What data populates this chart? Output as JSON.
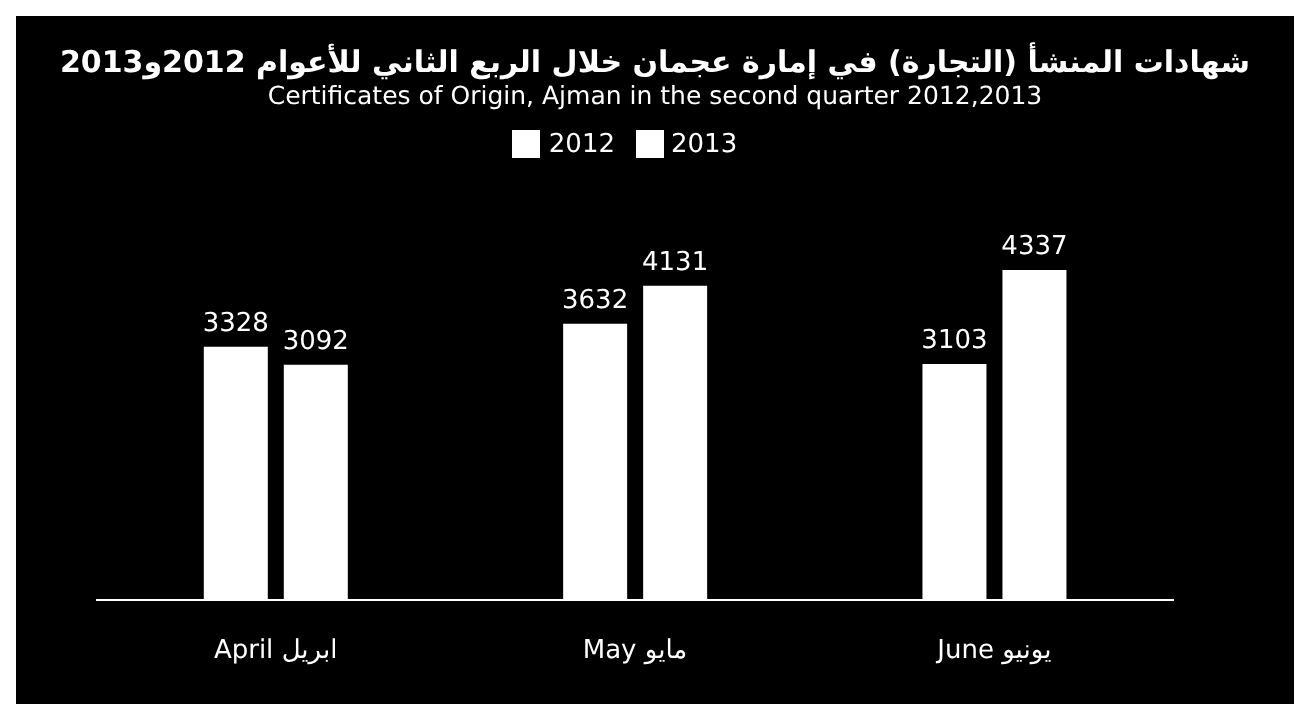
{
  "chart_data": {
    "type": "bar",
    "title": "شهادات المنشأ (التجارة) في إمارة عجمان خلال الربع الثاني للأعوام 2012و2013",
    "subtitle": "Certificates of Origin, Ajman in the second  quarter 2012,2013",
    "categories": [
      "April ابريل",
      "May مايو",
      "June يونيو"
    ],
    "series": [
      {
        "name": "2012",
        "color": "#ffffff",
        "values": [
          3328,
          3632,
          3103
        ]
      },
      {
        "name": "2013",
        "color": "#ffffff",
        "values": [
          3092,
          4131,
          4337
        ]
      }
    ],
    "data_labels": true,
    "legend": "top",
    "grid": false
  }
}
